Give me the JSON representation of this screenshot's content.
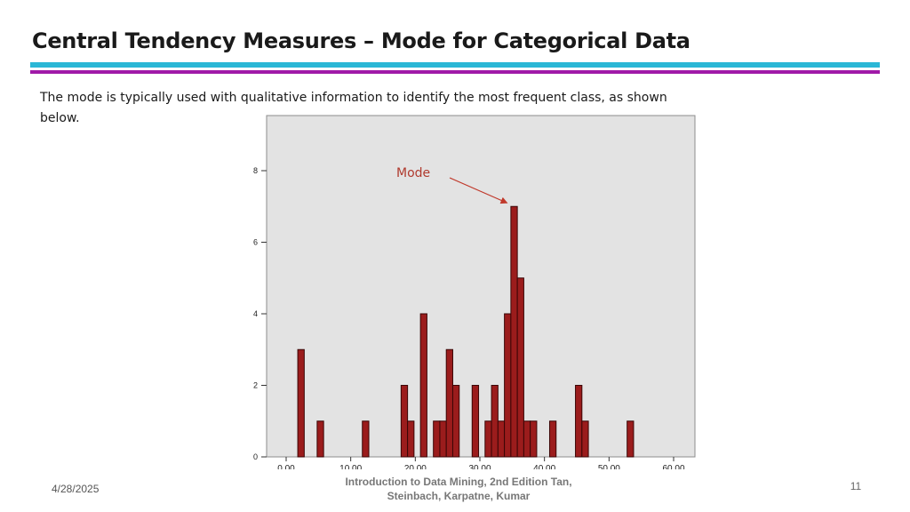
{
  "slide": {
    "title": "Central Tendency Measures – Mode for Categorical Data",
    "body": "The mode is typically used with qualitative information to identify the most frequent class, as shown below."
  },
  "footer": {
    "date": "4/28/2025",
    "citation": "Introduction to Data Mining, 2nd Edition   Tan, Steinbach, Karpatne, Kumar",
    "page_number": "11"
  },
  "colors": {
    "title_rule_cyan": "#2ab7d6",
    "title_rule_magenta": "#a01aa8",
    "plot_background": "#e3e3e3",
    "bar_fill": "#9b1c1c",
    "bar_stroke": "#3a0606",
    "annotation": "#c0392b"
  },
  "chart_data": {
    "type": "bar",
    "subtype": "histogram",
    "annotation": {
      "text": "Mode",
      "points_to_x": 35.3,
      "points_to_y": 7
    },
    "xlim": [
      0,
      60
    ],
    "ylim": [
      0,
      8
    ],
    "x_ticks": [
      "0.00",
      "10.00",
      "20.00",
      "30.00",
      "40.00",
      "50.00",
      "60.00"
    ],
    "y_ticks": [
      "0",
      "2",
      "4",
      "6",
      "8"
    ],
    "bin_width": 1,
    "bins": [
      {
        "x": 2.3,
        "value": 3
      },
      {
        "x": 5.3,
        "value": 1
      },
      {
        "x": 12.3,
        "value": 1
      },
      {
        "x": 18.3,
        "value": 2
      },
      {
        "x": 19.3,
        "value": 1
      },
      {
        "x": 21.3,
        "value": 4
      },
      {
        "x": 23.3,
        "value": 1
      },
      {
        "x": 24.3,
        "value": 1
      },
      {
        "x": 25.3,
        "value": 3
      },
      {
        "x": 26.3,
        "value": 2
      },
      {
        "x": 29.3,
        "value": 2
      },
      {
        "x": 31.3,
        "value": 1
      },
      {
        "x": 32.3,
        "value": 2
      },
      {
        "x": 33.3,
        "value": 1
      },
      {
        "x": 34.3,
        "value": 4
      },
      {
        "x": 35.3,
        "value": 7
      },
      {
        "x": 36.3,
        "value": 5
      },
      {
        "x": 37.3,
        "value": 1
      },
      {
        "x": 38.3,
        "value": 1
      },
      {
        "x": 41.3,
        "value": 1
      },
      {
        "x": 45.3,
        "value": 2
      },
      {
        "x": 46.3,
        "value": 1
      },
      {
        "x": 53.3,
        "value": 1
      }
    ]
  }
}
